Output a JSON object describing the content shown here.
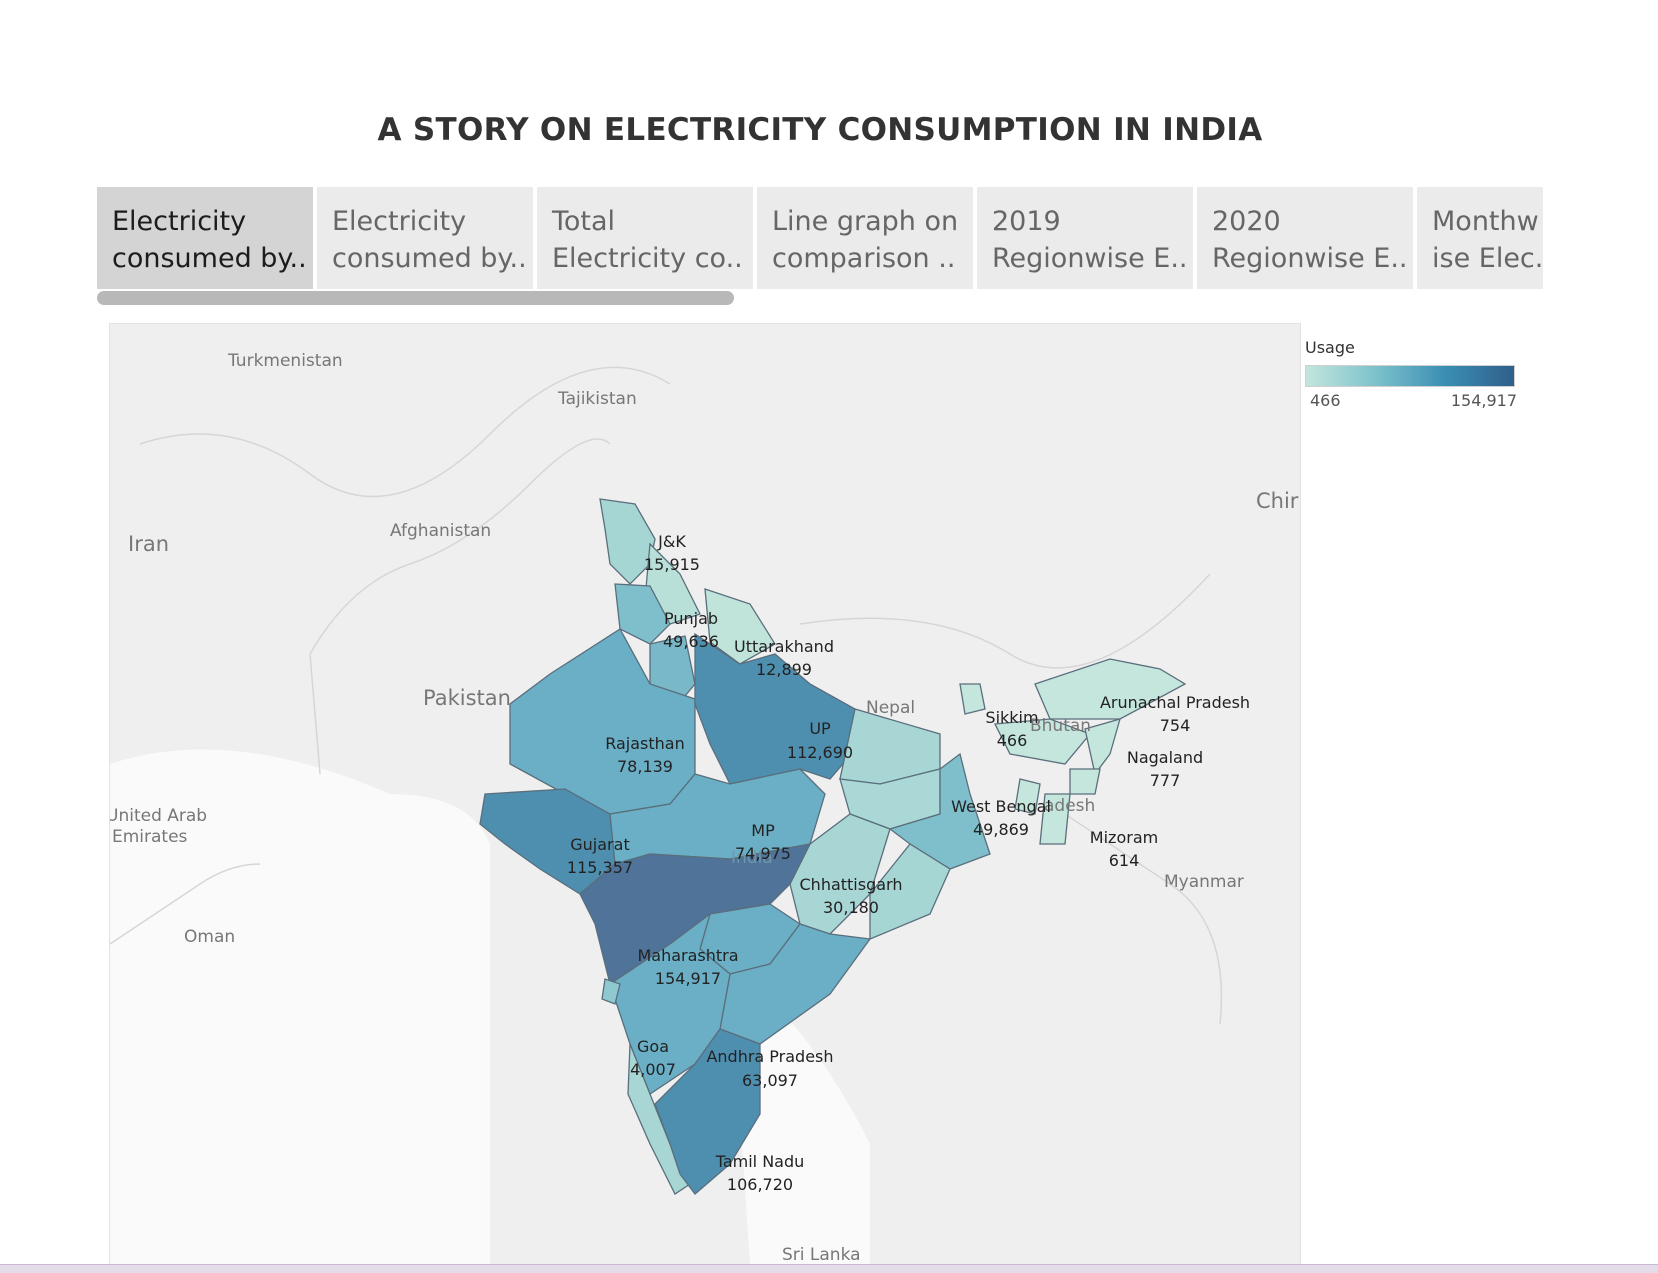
{
  "title": "A STORY ON ELECTRICITY CONSUMPTION IN INDIA",
  "tabs": [
    {
      "line1": "Electricity",
      "line2": "consumed by.."
    },
    {
      "line1": "Electricity",
      "line2": "consumed by.."
    },
    {
      "line1": "Total",
      "line2": "Electricity co.."
    },
    {
      "line1": " Line graph on",
      "line2": " comparison .."
    },
    {
      "line1": "2019",
      "line2": "Regionwise E.."
    },
    {
      "line1": "2020",
      "line2": "Regionwise E.."
    },
    {
      "line1": "Monthw",
      "line2": "ise Elec.."
    }
  ],
  "legend": {
    "title": "Usage",
    "min": "466",
    "max": "154,917",
    "colors": [
      "#c4e6dd",
      "#2f5f8b"
    ]
  },
  "countries": {
    "turkmenistan": "Turkmenistan",
    "tajikistan": "Tajikistan",
    "afghanistan": "Afghanistan",
    "iran": "Iran",
    "pakistan": "Pakistan",
    "uae1": "United Arab",
    "uae2": "Emirates",
    "oman": "Oman",
    "nepal": "Nepal",
    "bhutan": "Bhutan",
    "bangladesh": "adesh",
    "myanmar": "Myanmar",
    "china": "Chir",
    "srilanka": "Sri Lanka",
    "india": "India"
  },
  "states": {
    "jk": {
      "name": "J&K",
      "value": "15,915"
    },
    "punjab": {
      "name": "Punjab",
      "value": "49,636"
    },
    "uttarakhand": {
      "name": "Uttarakhand",
      "value": "12,899"
    },
    "rajasthan": {
      "name": "Rajasthan",
      "value": "78,139"
    },
    "up": {
      "name": "UP",
      "value": "112,690"
    },
    "gujarat": {
      "name": "Gujarat",
      "value": "115,357"
    },
    "mp": {
      "name": "MP",
      "value": "74,975"
    },
    "chhattisgarh": {
      "name": "Chhattisgarh",
      "value": "30,180"
    },
    "maharashtra": {
      "name": "Maharashtra",
      "value": "154,917"
    },
    "goa": {
      "name": "Goa",
      "value": "4,007"
    },
    "andhra": {
      "name": "Andhra Pradesh",
      "value": "63,097"
    },
    "tamilnadu": {
      "name": "Tamil Nadu",
      "value": "106,720"
    },
    "westbengal": {
      "name": "West Bengal",
      "value": "49,869"
    },
    "sikkim": {
      "name": "Sikkim",
      "value": "466"
    },
    "arunachal": {
      "name": "Arunachal Pradesh",
      "value": "754"
    },
    "nagaland": {
      "name": "Nagaland",
      "value": "777"
    },
    "mizoram": {
      "name": "Mizoram",
      "value": "614"
    }
  }
}
